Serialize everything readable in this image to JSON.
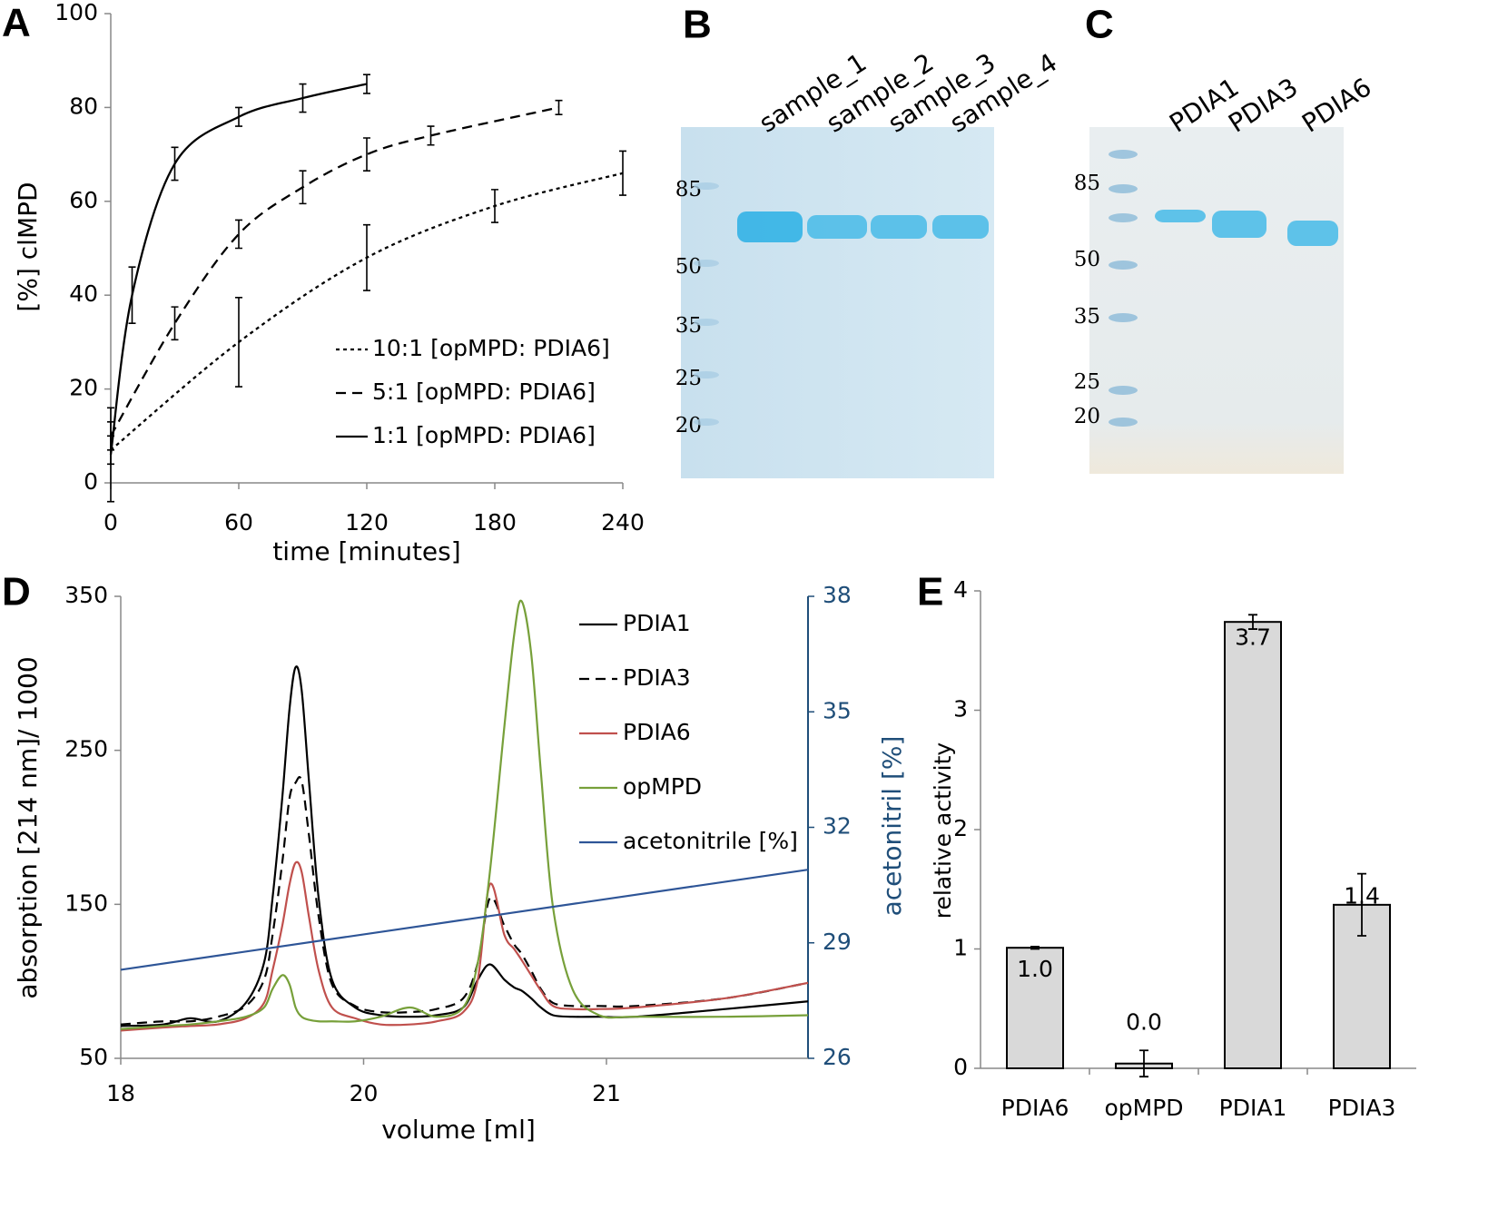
{
  "chart_data": [
    {
      "type": "line",
      "panel_label": "A",
      "xlabel": "time [minutes]",
      "ylabel": "[%] clMPD",
      "xlim": [
        0,
        240
      ],
      "xticks": [
        0,
        60,
        120,
        180,
        240
      ],
      "ylim": [
        0,
        100
      ],
      "yticks": [
        0,
        20,
        40,
        60,
        80,
        100
      ],
      "legend": "lower right",
      "series": [
        {
          "name": "10:1 [opMPD: PDIA6]",
          "color": "#000000",
          "dash": "dotted",
          "x": [
            0,
            60,
            120,
            180,
            240
          ],
          "values": [
            7,
            30,
            48,
            59,
            66
          ],
          "errors": [
            3,
            9.5,
            7,
            3.5,
            4.7
          ]
        },
        {
          "name": "5:1 [opMPD: PDIA6]",
          "color": "#000000",
          "dash": "dashed",
          "x": [
            0,
            30,
            60,
            90,
            120,
            150,
            210
          ],
          "values": [
            10,
            34,
            53,
            63,
            70,
            74,
            80
          ],
          "errors": [
            3,
            3.5,
            3,
            3.5,
            3.5,
            2,
            1.5
          ]
        },
        {
          "name": "1:1 [opMPD: PDIA6]",
          "color": "#000000",
          "dash": "solid",
          "x": [
            0,
            10,
            30,
            60,
            90,
            120
          ],
          "values": [
            6,
            40,
            68,
            78,
            82,
            85
          ],
          "errors": [
            10,
            6,
            3.5,
            2,
            3,
            2
          ]
        }
      ]
    },
    {
      "type": "line",
      "panel_label": "D",
      "xlabel": "volume [ml]",
      "ylabel": "absorption [214 nm]/ 1000",
      "y2label": "acetonitril [%]",
      "xlim": [
        18,
        21.83
      ],
      "xticks": [
        18,
        20,
        21
      ],
      "x_tick_spacing": "even",
      "ylim": [
        50,
        350
      ],
      "yticks": [
        50,
        150,
        250,
        350
      ],
      "y2lim": [
        26,
        38
      ],
      "y2ticks": [
        26,
        29,
        32,
        35,
        38
      ],
      "y2color": "#1f4e79",
      "legend": "upper right",
      "x": [
        18.0,
        18.35,
        18.57,
        18.8,
        19.03,
        19.18,
        19.25,
        19.33,
        19.39,
        19.44,
        19.49,
        19.55,
        19.63,
        19.74,
        19.93,
        20.07,
        20.19,
        20.3,
        20.41,
        20.47,
        20.52,
        20.58,
        20.62,
        20.65,
        20.69,
        20.73,
        20.78,
        20.86,
        20.97,
        21.12,
        21.49,
        21.83
      ],
      "series": [
        {
          "name": "PDIA1",
          "color": "#000000",
          "dash": "solid",
          "values": [
            71,
            72,
            76,
            74,
            86,
            112,
            154,
            219,
            277,
            304,
            289,
            230,
            154,
            101,
            83,
            78,
            77,
            78,
            83,
            101,
            111,
            101,
            96,
            94,
            89,
            83,
            78,
            77,
            77,
            77,
            82,
            87
          ]
        },
        {
          "name": "PDIA3",
          "color": "#000000",
          "dash": "dashed",
          "values": [
            72,
            74,
            74,
            77,
            84,
            101,
            130,
            177,
            219,
            229,
            230,
            195,
            142,
            98,
            84,
            80,
            80,
            82,
            89,
            112,
            154,
            136,
            124,
            118,
            107,
            95,
            86,
            84,
            84,
            84,
            89,
            99
          ]
        },
        {
          "name": "PDIA6",
          "color": "#c0504d",
          "dash": "solid",
          "values": [
            68,
            70,
            71,
            72,
            76,
            86,
            107,
            136,
            163,
            177,
            171,
            142,
            107,
            83,
            76,
            72,
            72,
            74,
            80,
            101,
            163,
            130,
            121,
            114,
            104,
            94,
            84,
            82,
            82,
            83,
            89,
            99
          ]
        },
        {
          "name": "opMPD",
          "color": "#77a03a",
          "dash": "solid",
          "values": [
            69,
            71,
            72,
            74,
            77,
            83,
            95,
            104,
            98,
            83,
            77,
            75,
            74,
            74,
            74,
            77,
            83,
            77,
            83,
            112,
            171,
            266,
            325,
            347,
            313,
            236,
            148,
            95,
            78,
            77,
            77,
            78
          ]
        },
        {
          "name": "acetonitrile [%]",
          "color": "#2e5597",
          "dash": "solid",
          "axis": "y2",
          "x": [
            18,
            21.83
          ],
          "values": [
            28.3,
            30.9
          ]
        }
      ]
    },
    {
      "type": "bar",
      "panel_label": "E",
      "ylabel": "relative activity",
      "categories": [
        "PDIA6",
        "opMPD",
        "PDIA1",
        "PDIA3"
      ],
      "values": [
        1.01,
        0.04,
        3.74,
        1.37
      ],
      "value_labels": [
        "1.0",
        "0.0",
        "3.7",
        "1.4"
      ],
      "errors": [
        0.01,
        0.11,
        0.06,
        0.26
      ],
      "color": "#d9d9d9",
      "ylim": [
        0,
        4
      ],
      "yticks": [
        0,
        1,
        2,
        3,
        4
      ]
    }
  ],
  "gels": [
    {
      "panel_label": "B",
      "lanes": [
        "sample_1",
        "sample_2",
        "sample_3",
        "sample_4"
      ],
      "markers": [
        85,
        50,
        35,
        25,
        20
      ]
    },
    {
      "panel_label": "C",
      "lanes": [
        "PDIA1",
        "PDIA3",
        "PDIA6"
      ],
      "markers": [
        85,
        50,
        35,
        25,
        20
      ]
    }
  ]
}
